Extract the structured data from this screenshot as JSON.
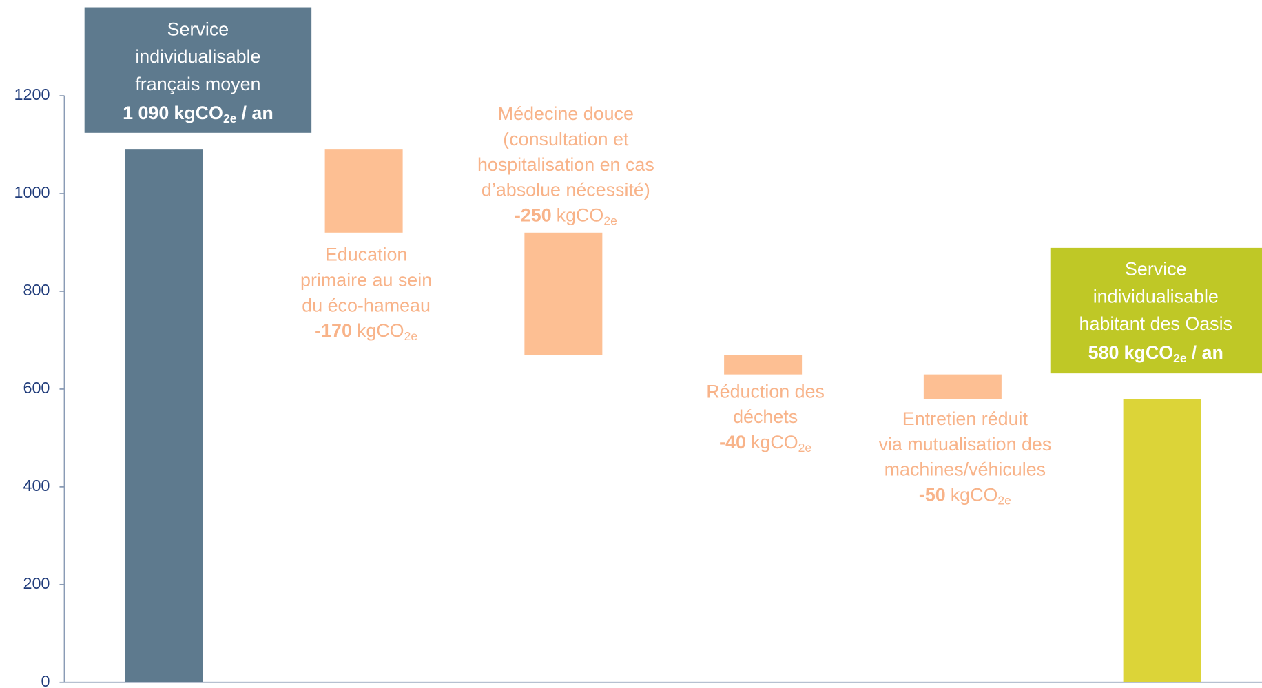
{
  "chart_data": {
    "type": "waterfall",
    "categories": [
      [
        "Service",
        "individualisable",
        "français moyen"
      ],
      [
        "Education",
        "primaire au sein",
        "du éco-hameau"
      ],
      [
        "Médecine douce",
        "(consultation et",
        "hospitalisation en cas",
        "d’absolue nécessité)"
      ],
      [
        "Réduction des",
        "déchets"
      ],
      [
        "Entretien réduit",
        "via mutualisation des",
        "machines/véhicules"
      ],
      [
        "Service",
        "individualisable",
        "habitant des Oasis"
      ]
    ],
    "values": [
      1090,
      -170,
      -250,
      -40,
      -50,
      580
    ],
    "value_labels": [
      "1 090",
      "-170",
      "-250",
      "-40",
      "-50",
      "580"
    ],
    "is_total": [
      true,
      false,
      false,
      false,
      false,
      true
    ],
    "unit": "kgCO",
    "unit_subscript": "2e",
    "total_suffix": "/ an",
    "colors": [
      "#5e7a8e",
      "#fdbf93",
      "#fdbf93",
      "#fdbf93",
      "#fdbf93",
      "#dcd438"
    ],
    "box_colors": [
      "#5e7a8e",
      "#bfc826"
    ],
    "ylim": [
      0,
      1200
    ],
    "yticks": [
      0,
      200,
      400,
      600,
      800,
      1000,
      1200
    ]
  }
}
